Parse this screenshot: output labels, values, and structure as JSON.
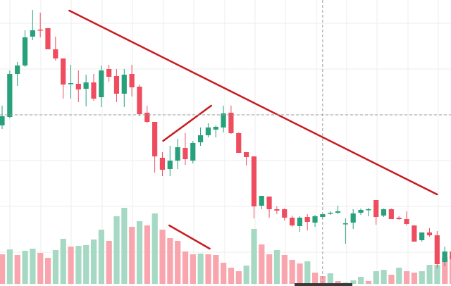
{
  "chart_data": {
    "type": "candlestick",
    "title": "",
    "xlabel": "",
    "ylabel": "",
    "grid": true,
    "colors": {
      "up": "#26a17b",
      "down": "#ef4d5f",
      "volume_up": "#a5d9c3",
      "volume_down": "#f9a5ae",
      "trendline": "#c8191f",
      "grid": "#eeeeee",
      "crosshair": "#9a9a9a",
      "scrollbar": "#3a3a3a"
    },
    "candles": [
      [
        57.2,
        60.0,
        56.7,
        58.5
      ],
      [
        58.4,
        65.0,
        58.2,
        64.5
      ],
      [
        64.5,
        66.2,
        62.8,
        65.7
      ],
      [
        65.7,
        70.7,
        65.5,
        69.7
      ],
      [
        69.8,
        73.6,
        69.3,
        70.7
      ],
      [
        70.8,
        73.2,
        69.7,
        70.75
      ],
      [
        71.0,
        71.0,
        68.0,
        68.0
      ],
      [
        68.0,
        69.8,
        66.4,
        66.7
      ],
      [
        66.7,
        66.7,
        61.0,
        63.0
      ],
      [
        63.15,
        65.8,
        61.0,
        63.2
      ],
      [
        63.1,
        65.0,
        60.5,
        62.3
      ],
      [
        62.4,
        64.4,
        59.9,
        63.3
      ],
      [
        63.3,
        64.5,
        60.7,
        61.0
      ],
      [
        61.2,
        65.7,
        59.8,
        65.0
      ],
      [
        65.2,
        65.8,
        63.4,
        64.1
      ],
      [
        64.2,
        65.2,
        60.5,
        61.7
      ],
      [
        61.7,
        65.2,
        59.8,
        64.4
      ],
      [
        64.5,
        65.8,
        61.3,
        62.6
      ],
      [
        62.7,
        63.0,
        58.5,
        58.8
      ],
      [
        59.0,
        60.0,
        57.5,
        57.7
      ],
      [
        57.7,
        57.7,
        50.5,
        52.8
      ],
      [
        52.6,
        53.4,
        50.0,
        50.9
      ],
      [
        51.0,
        54.3,
        50.0,
        52.2
      ],
      [
        52.2,
        55.3,
        51.0,
        54.1
      ],
      [
        54.0,
        56.1,
        51.6,
        52.4
      ],
      [
        52.2,
        55.0,
        51.8,
        54.7
      ],
      [
        54.8,
        56.9,
        54.3,
        55.8
      ],
      [
        55.8,
        57.5,
        55.5,
        56.9
      ],
      [
        56.6,
        57.2,
        55.5,
        57.0
      ],
      [
        56.9,
        60.0,
        56.2,
        58.9
      ],
      [
        59.0,
        60.0,
        56.0,
        56.1
      ],
      [
        56.1,
        56.2,
        53.3,
        53.3
      ],
      [
        53.4,
        53.4,
        51.5,
        52.7
      ],
      [
        52.8,
        52.8,
        44.0,
        45.7
      ],
      [
        45.8,
        47.2,
        45.3,
        47.2
      ],
      [
        47.1,
        47.1,
        44.1,
        45.3
      ],
      [
        45.3,
        45.7,
        44.6,
        45.1
      ],
      [
        45.3,
        45.4,
        43.7,
        44.1
      ],
      [
        44.1,
        44.4,
        42.8,
        43.0
      ],
      [
        42.9,
        44.3,
        42.1,
        44.1
      ],
      [
        44.2,
        44.6,
        42.3,
        43.5
      ],
      [
        43.4,
        44.5,
        42.8,
        44.3
      ],
      [
        44.2,
        44.7,
        43.9,
        44.6
      ],
      [
        44.7,
        45.0,
        44.5,
        44.8
      ],
      [
        44.8,
        45.8,
        44.6,
        45.0
      ],
      [
        43.25,
        44.0,
        40.4,
        43.3
      ],
      [
        43.4,
        45.3,
        42.5,
        44.7
      ],
      [
        44.8,
        45.4,
        44.5,
        45.2
      ],
      [
        45.25,
        45.5,
        44.3,
        45.3
      ],
      [
        46.6,
        46.6,
        43.1,
        44.2
      ],
      [
        44.4,
        45.4,
        44.2,
        45.3
      ],
      [
        45.3,
        45.4,
        43.9,
        43.9
      ],
      [
        44.1,
        44.3,
        43.8,
        43.9
      ],
      [
        43.9,
        45.0,
        43.0,
        43.2
      ],
      [
        43.0,
        43.0,
        40.7,
        40.7
      ],
      [
        40.9,
        42.0,
        40.7,
        42.0
      ],
      [
        42.0,
        42.6,
        41.4,
        41.6
      ],
      [
        41.6,
        42.2,
        36.9,
        37.5
      ],
      [
        37.8,
        40.0,
        37.2,
        39.3
      ],
      [
        39.3,
        39.8,
        38.0,
        38.2
      ]
    ],
    "candle_fields": [
      "open",
      "high",
      "low",
      "close"
    ],
    "volume": [
      42,
      49,
      41,
      47,
      50,
      44,
      37,
      48,
      64,
      53,
      54,
      55,
      63,
      77,
      61,
      96,
      108,
      81,
      89,
      83,
      100,
      77,
      65,
      61,
      46,
      42,
      43,
      42,
      41,
      30,
      23,
      18,
      26,
      78,
      56,
      42,
      48,
      41,
      34,
      29,
      32,
      16,
      11,
      15,
      4,
      2,
      5,
      10,
      4,
      18,
      20,
      13,
      23,
      18,
      16,
      18,
      27,
      27,
      38,
      40
    ],
    "volume_up": [
      0,
      1,
      0,
      1,
      1,
      0,
      0,
      1,
      1,
      0,
      1,
      1,
      1,
      1,
      0,
      1,
      1,
      0,
      1,
      0,
      1,
      0,
      0,
      0,
      0,
      0,
      1,
      0,
      0,
      0,
      0,
      0,
      1,
      1,
      0,
      0,
      1,
      0,
      0,
      0,
      1,
      0,
      0,
      1,
      0,
      1,
      1,
      1,
      0,
      1,
      1,
      0,
      1,
      0,
      0,
      1,
      1,
      1,
      0,
      0
    ],
    "drawings": [
      {
        "kind": "trendline",
        "pane": "price",
        "from": [
          9.8,
          73.5
        ],
        "to": [
          58.0,
          47.4
        ]
      },
      {
        "kind": "trendline",
        "pane": "price",
        "from": [
          22.1,
          55.0
        ],
        "to": [
          28.4,
          60.0
        ]
      },
      {
        "kind": "trendline",
        "pane": "volume",
        "from": [
          22.9,
          83
        ],
        "to": [
          28.2,
          50
        ]
      }
    ],
    "crosshair": {
      "bar": 43.0,
      "price": 58.7
    }
  }
}
